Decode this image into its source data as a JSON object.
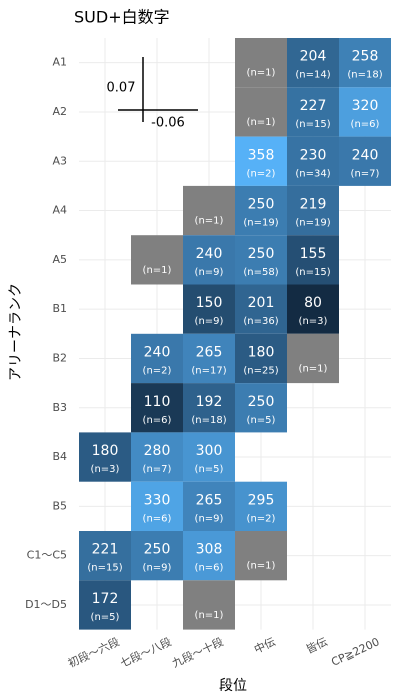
{
  "chart_data": {
    "type": "heatmap",
    "title": "SUD+白数字",
    "x_label": "段位",
    "y_label": "アリーナランク",
    "columns": [
      "初段～六段",
      "七段～八段",
      "九段～十段",
      "中伝",
      "皆伝",
      "CP≧2200"
    ],
    "rows": [
      "A1",
      "A2",
      "A3",
      "A4",
      "A5",
      "B1",
      "B2",
      "B3",
      "B4",
      "B5",
      "C1～C5",
      "D1～D5"
    ],
    "low_color": "#132b43",
    "high_color": "#56b1f7",
    "na_color": "#808080",
    "grid": true,
    "annotations": [
      {
        "text": "0.07"
      },
      {
        "text": "-0.06"
      }
    ],
    "cells": [
      {
        "row": "A1",
        "col": "中伝",
        "value": null,
        "label": "(n=1)"
      },
      {
        "row": "A1",
        "col": "皆伝",
        "value": 204,
        "label": "(n=14)"
      },
      {
        "row": "A1",
        "col": "CP≧2200",
        "value": 258,
        "label": "(n=18)"
      },
      {
        "row": "A2",
        "col": "中伝",
        "value": null,
        "label": "(n=1)"
      },
      {
        "row": "A2",
        "col": "皆伝",
        "value": 227,
        "label": "(n=15)"
      },
      {
        "row": "A2",
        "col": "CP≧2200",
        "value": 320,
        "label": "(n=6)"
      },
      {
        "row": "A3",
        "col": "中伝",
        "value": 358,
        "label": "(n=2)"
      },
      {
        "row": "A3",
        "col": "皆伝",
        "value": 230,
        "label": "(n=34)"
      },
      {
        "row": "A3",
        "col": "CP≧2200",
        "value": 240,
        "label": "(n=7)"
      },
      {
        "row": "A4",
        "col": "九段～十段",
        "value": null,
        "label": "(n=1)"
      },
      {
        "row": "A4",
        "col": "中伝",
        "value": 250,
        "label": "(n=19)"
      },
      {
        "row": "A4",
        "col": "皆伝",
        "value": 219,
        "label": "(n=19)"
      },
      {
        "row": "A5",
        "col": "七段～八段",
        "value": null,
        "label": "(n=1)"
      },
      {
        "row": "A5",
        "col": "九段～十段",
        "value": 240,
        "label": "(n=9)"
      },
      {
        "row": "A5",
        "col": "中伝",
        "value": 250,
        "label": "(n=58)"
      },
      {
        "row": "A5",
        "col": "皆伝",
        "value": 155,
        "label": "(n=15)"
      },
      {
        "row": "B1",
        "col": "九段～十段",
        "value": 150,
        "label": "(n=9)"
      },
      {
        "row": "B1",
        "col": "中伝",
        "value": 201,
        "label": "(n=36)"
      },
      {
        "row": "B1",
        "col": "皆伝",
        "value": 80,
        "label": "(n=3)"
      },
      {
        "row": "B2",
        "col": "七段～八段",
        "value": 240,
        "label": "(n=2)"
      },
      {
        "row": "B2",
        "col": "九段～十段",
        "value": 265,
        "label": "(n=17)"
      },
      {
        "row": "B2",
        "col": "中伝",
        "value": 180,
        "label": "(n=25)"
      },
      {
        "row": "B2",
        "col": "皆伝",
        "value": null,
        "label": "(n=1)"
      },
      {
        "row": "B3",
        "col": "七段～八段",
        "value": 110,
        "label": "(n=6)"
      },
      {
        "row": "B3",
        "col": "九段～十段",
        "value": 192,
        "label": "(n=18)"
      },
      {
        "row": "B3",
        "col": "中伝",
        "value": 250,
        "label": "(n=5)"
      },
      {
        "row": "B4",
        "col": "初段～六段",
        "value": 180,
        "label": "(n=3)"
      },
      {
        "row": "B4",
        "col": "七段～八段",
        "value": 280,
        "label": "(n=7)"
      },
      {
        "row": "B4",
        "col": "九段～十段",
        "value": 300,
        "label": "(n=5)"
      },
      {
        "row": "B5",
        "col": "七段～八段",
        "value": 330,
        "label": "(n=6)"
      },
      {
        "row": "B5",
        "col": "九段～十段",
        "value": 265,
        "label": "(n=9)"
      },
      {
        "row": "B5",
        "col": "中伝",
        "value": 295,
        "label": "(n=2)"
      },
      {
        "row": "C1～C5",
        "col": "初段～六段",
        "value": 221,
        "label": "(n=15)"
      },
      {
        "row": "C1～C5",
        "col": "七段～八段",
        "value": 250,
        "label": "(n=9)"
      },
      {
        "row": "C1～C5",
        "col": "九段～十段",
        "value": 308,
        "label": "(n=6)"
      },
      {
        "row": "C1～C5",
        "col": "中伝",
        "value": null,
        "label": "(n=1)"
      },
      {
        "row": "D1～D5",
        "col": "初段～六段",
        "value": 172,
        "label": "(n=5)"
      },
      {
        "row": "D1～D5",
        "col": "九段～十段",
        "value": null,
        "label": "(n=1)"
      }
    ]
  }
}
